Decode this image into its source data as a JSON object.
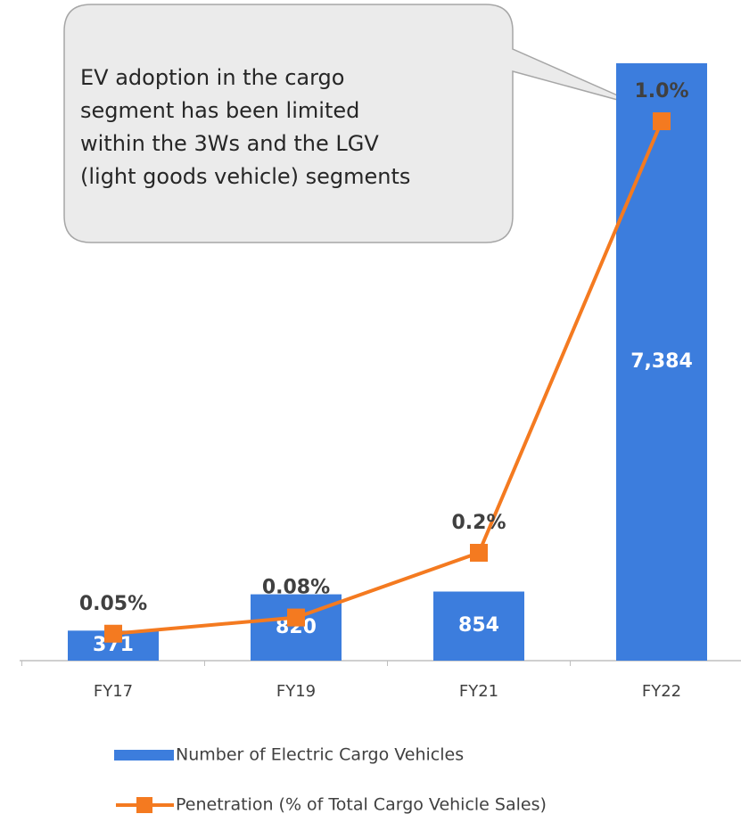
{
  "chart_data": {
    "type": "bar-line",
    "annotation": [
      "EV adoption in the cargo",
      "segment has been limited",
      "within the 3Ws and the LGV",
      "(light goods vehicle) segments"
    ],
    "categories": [
      "FY17",
      "FY19",
      "FY21",
      "FY22"
    ],
    "series": [
      {
        "name": "Number of Electric Cargo Vehicles",
        "color": "#3c7ddd",
        "type": "bar",
        "values": [
          371,
          820,
          854,
          7384
        ],
        "value_labels": [
          "371",
          "820",
          "854",
          "7,384"
        ]
      },
      {
        "name": "Penetration (% of Total Cargo Vehicle Sales)",
        "color": "#f47a20",
        "type": "line",
        "axis": "y2",
        "values": [
          0.05,
          0.08,
          0.2,
          1.0
        ],
        "value_labels": [
          "0.05%",
          "0.08%",
          "0.2%",
          "1.0%"
        ]
      }
    ],
    "ylim": [
      0,
      8000
    ],
    "y2lim": [
      0,
      1.2
    ]
  }
}
